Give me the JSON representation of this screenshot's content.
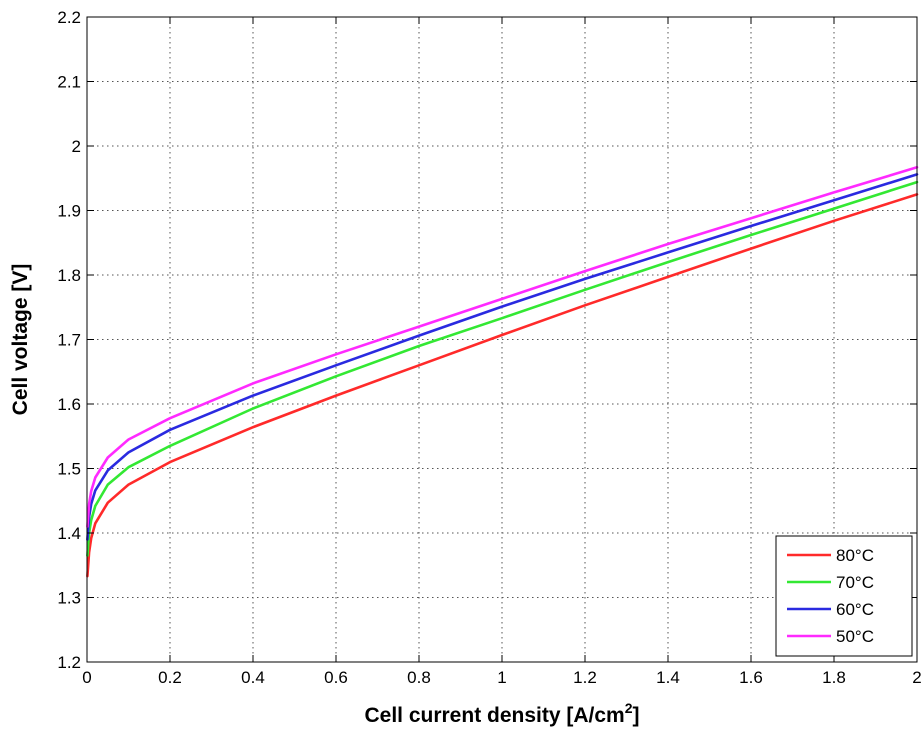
{
  "chart_data": {
    "type": "line",
    "title": "",
    "xlabel": "Cell current density [A/cm",
    "xlabel_sup": "2",
    "xlabel_end": "]",
    "ylabel": "Cell voltage [V]",
    "xlim": [
      0,
      2
    ],
    "ylim": [
      1.2,
      2.2
    ],
    "x_ticks": [
      0,
      0.2,
      0.4,
      0.6,
      0.8,
      1,
      1.2,
      1.4,
      1.6,
      1.8,
      2
    ],
    "x_tick_labels": [
      "0",
      "0.2",
      "0.4",
      "0.6",
      "0.8",
      "1",
      "1.2",
      "1.4",
      "1.6",
      "1.8",
      "2"
    ],
    "y_ticks": [
      1.2,
      1.3,
      1.4,
      1.5,
      1.6,
      1.7,
      1.8,
      1.9,
      2.0,
      2.1,
      2.2
    ],
    "y_tick_labels": [
      "1.2",
      "1.3",
      "1.4",
      "1.5",
      "1.6",
      "1.7",
      "1.8",
      "1.9",
      "2",
      "2.1",
      "2.2"
    ],
    "grid": true,
    "legend_position": "bottom-right",
    "x": [
      0.001,
      0.005,
      0.01,
      0.02,
      0.05,
      0.1,
      0.2,
      0.4,
      0.6,
      0.8,
      1.0,
      1.2,
      1.4,
      1.6,
      1.8,
      2.0
    ],
    "series": [
      {
        "name": "80°C",
        "color": "#ff2a2a",
        "values": [
          1.333,
          1.37,
          1.392,
          1.415,
          1.447,
          1.475,
          1.51,
          1.564,
          1.613,
          1.66,
          1.707,
          1.753,
          1.797,
          1.841,
          1.884,
          1.925
        ]
      },
      {
        "name": "70°C",
        "color": "#33e833",
        "values": [
          1.365,
          1.4,
          1.42,
          1.442,
          1.475,
          1.502,
          1.535,
          1.593,
          1.643,
          1.69,
          1.733,
          1.777,
          1.82,
          1.862,
          1.903,
          1.944
        ]
      },
      {
        "name": "60°C",
        "color": "#2a2ae0",
        "values": [
          1.39,
          1.425,
          1.445,
          1.466,
          1.497,
          1.525,
          1.56,
          1.613,
          1.66,
          1.706,
          1.751,
          1.794,
          1.835,
          1.876,
          1.916,
          1.956
        ]
      },
      {
        "name": "50°C",
        "color": "#ff2aff",
        "values": [
          1.41,
          1.445,
          1.465,
          1.486,
          1.517,
          1.545,
          1.578,
          1.632,
          1.677,
          1.72,
          1.763,
          1.806,
          1.848,
          1.888,
          1.928,
          1.967
        ]
      }
    ]
  }
}
